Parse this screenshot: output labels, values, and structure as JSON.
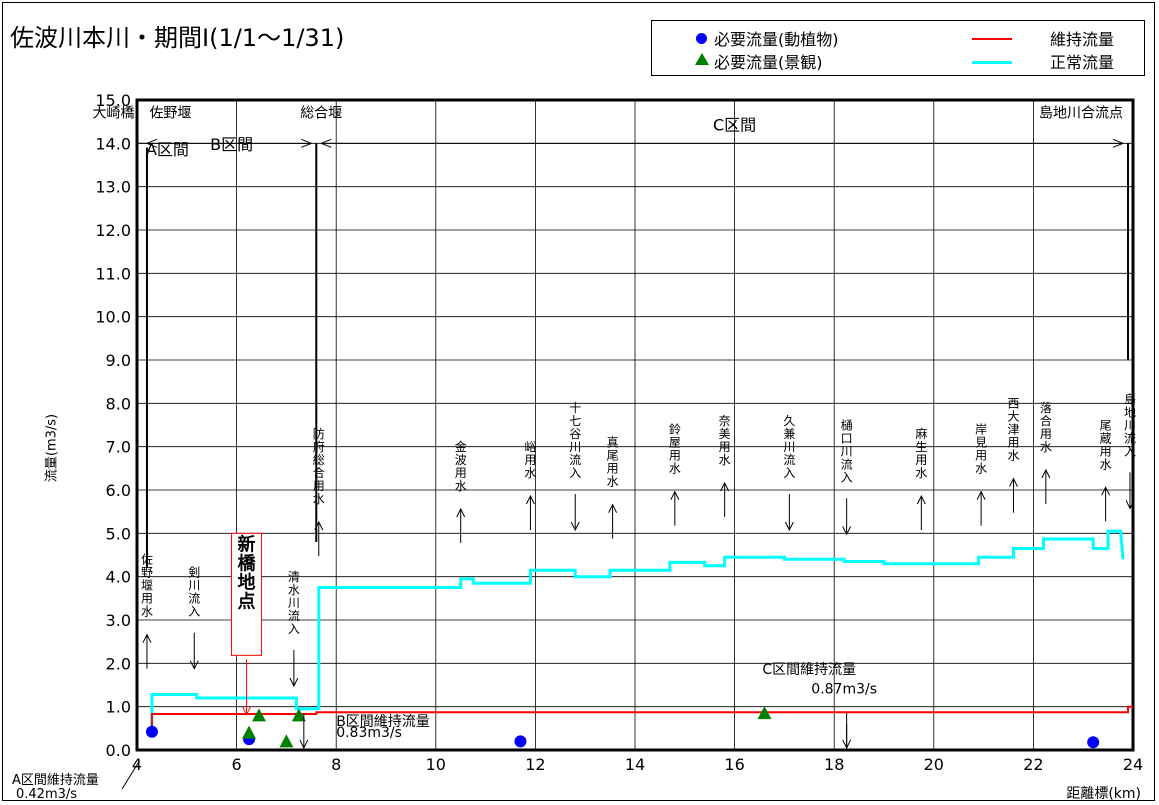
{
  "title": "佐波川本川・期間Ⅰ(1/1～1/31)",
  "legend": {
    "items": [
      {
        "label": "必要流量(動植物)",
        "marker": "circle",
        "color": "#0000ff"
      },
      {
        "label": "必要流量(景観)",
        "marker": "triangle",
        "color": "#008000"
      },
      {
        "label": "維持流量",
        "marker": "line",
        "color": "#ff0000"
      },
      {
        "label": "正常流量",
        "marker": "line",
        "color": "#00ffff"
      }
    ]
  },
  "chart_data": {
    "type": "line",
    "title": "佐波川本川・期間Ⅰ(1/1～1/31)",
    "xlabel": "距離標(km)",
    "ylabel": "流量(m3/s)",
    "xlim": [
      4,
      24
    ],
    "ylim": [
      0,
      15
    ],
    "x_ticks": [
      "4",
      "6",
      "8",
      "10",
      "12",
      "14",
      "16",
      "18",
      "20",
      "22",
      "24"
    ],
    "y_ticks": [
      "0.0",
      "1.0",
      "2.0",
      "3.0",
      "4.0",
      "5.0",
      "6.0",
      "7.0",
      "8.0",
      "9.0",
      "10.0",
      "11.0",
      "12.0",
      "13.0",
      "14.0",
      "15.0"
    ],
    "grid": true,
    "series": [
      {
        "name": "正常流量",
        "color": "#00ffff",
        "points": [
          [
            4.2,
            0.42
          ],
          [
            4.3,
            0.42
          ],
          [
            4.3,
            1.28
          ],
          [
            5.2,
            1.28
          ],
          [
            5.2,
            1.2
          ],
          [
            7.2,
            1.2
          ],
          [
            7.2,
            0.95
          ],
          [
            7.65,
            0.95
          ],
          [
            7.65,
            3.75
          ],
          [
            10.5,
            3.75
          ],
          [
            10.5,
            3.95
          ],
          [
            10.75,
            3.95
          ],
          [
            10.75,
            3.85
          ],
          [
            11.9,
            3.85
          ],
          [
            11.9,
            4.15
          ],
          [
            12.8,
            4.15
          ],
          [
            12.8,
            4.0
          ],
          [
            13.5,
            4.0
          ],
          [
            13.5,
            4.15
          ],
          [
            14.7,
            4.15
          ],
          [
            14.7,
            4.33
          ],
          [
            15.4,
            4.33
          ],
          [
            15.4,
            4.25
          ],
          [
            15.8,
            4.25
          ],
          [
            15.8,
            4.45
          ],
          [
            17.0,
            4.45
          ],
          [
            17.0,
            4.4
          ],
          [
            18.2,
            4.4
          ],
          [
            18.2,
            4.35
          ],
          [
            19.0,
            4.35
          ],
          [
            19.0,
            4.3
          ],
          [
            20.9,
            4.3
          ],
          [
            20.9,
            4.45
          ],
          [
            21.6,
            4.45
          ],
          [
            21.6,
            4.65
          ],
          [
            22.2,
            4.65
          ],
          [
            22.2,
            4.87
          ],
          [
            23.2,
            4.87
          ],
          [
            23.2,
            4.65
          ],
          [
            23.5,
            4.65
          ],
          [
            23.5,
            5.05
          ],
          [
            23.75,
            5.05
          ],
          [
            23.8,
            4.4
          ]
        ]
      },
      {
        "name": "維持流量",
        "color": "#ff0000",
        "points": [
          [
            4.2,
            0.42
          ],
          [
            4.3,
            0.42
          ],
          [
            4.3,
            0.83
          ],
          [
            7.6,
            0.83
          ],
          [
            7.6,
            0.87
          ],
          [
            23.9,
            0.87
          ],
          [
            23.9,
            1.0
          ],
          [
            24.0,
            1.0
          ]
        ]
      }
    ],
    "points_animals": {
      "name": "必要流量(動植物)",
      "values": [
        [
          4.3,
          0.42
        ],
        [
          6.25,
          0.25
        ],
        [
          11.7,
          0.2
        ],
        [
          23.2,
          0.18
        ]
      ]
    },
    "points_landscape": {
      "name": "必要流量(景観)",
      "values": [
        [
          6.25,
          0.4
        ],
        [
          6.45,
          0.8
        ],
        [
          7.0,
          0.2
        ],
        [
          7.25,
          0.8
        ],
        [
          16.6,
          0.85
        ]
      ]
    },
    "sections": [
      {
        "label": "A区間"
      },
      {
        "label": "B区間"
      },
      {
        "label": "C区間"
      }
    ],
    "landmarks": [
      "大崎橋",
      "佐野堰",
      "総合堰",
      "島地川合流点"
    ],
    "annotations": [
      {
        "label": "佐野堰用水",
        "x": 4.2,
        "dir": "up",
        "y_text": 4.3
      },
      {
        "label": "剣川流入",
        "x": 5.15,
        "dir": "down",
        "y_text": 4.0
      },
      {
        "label": "清水川流入",
        "x": 7.15,
        "dir": "down",
        "y_text": 3.9
      },
      {
        "label": "防府総合用水",
        "x": 7.65,
        "dir": "up",
        "y_text": 7.2
      },
      {
        "label": "金波用水",
        "x": 10.5,
        "dir": "up",
        "y_text": 6.9
      },
      {
        "label": "峪用水",
        "x": 11.9,
        "dir": "up",
        "y_text": 6.9
      },
      {
        "label": "十七谷川流入",
        "x": 12.8,
        "dir": "down",
        "y_text": 7.8
      },
      {
        "label": "真尾用水",
        "x": 13.55,
        "dir": "up",
        "y_text": 7.0
      },
      {
        "label": "鈴屋用水",
        "x": 14.8,
        "dir": "up",
        "y_text": 7.3
      },
      {
        "label": "奈美用水",
        "x": 15.8,
        "dir": "up",
        "y_text": 7.5
      },
      {
        "label": "久兼川流入",
        "x": 17.1,
        "dir": "down",
        "y_text": 7.5
      },
      {
        "label": "樋口川流入",
        "x": 18.25,
        "dir": "down",
        "y_text": 7.4
      },
      {
        "label": "麻生用水",
        "x": 19.75,
        "dir": "up",
        "y_text": 7.2
      },
      {
        "label": "岸見用水",
        "x": 20.95,
        "dir": "up",
        "y_text": 7.3
      },
      {
        "label": "西大津用水",
        "x": 21.6,
        "dir": "up",
        "y_text": 7.9
      },
      {
        "label": "落合用水",
        "x": 22.25,
        "dir": "up",
        "y_text": 7.8
      },
      {
        "label": "尾蔵用水",
        "x": 23.45,
        "dir": "up",
        "y_text": 7.4
      },
      {
        "label": "島地川流入",
        "x": 24.0,
        "dir": "down",
        "y_text": 8.0
      }
    ],
    "maintenance_labels": [
      {
        "label": "A区間維持流量",
        "value": "0.42m3/s"
      },
      {
        "label": "B区間維持流量",
        "value": "0.83m3/s"
      },
      {
        "label": "C区間維持流量",
        "value": "0.87m3/s"
      }
    ],
    "highlight": {
      "label": "新橋地点",
      "x": 6.2,
      "color": "#ff0000"
    }
  }
}
